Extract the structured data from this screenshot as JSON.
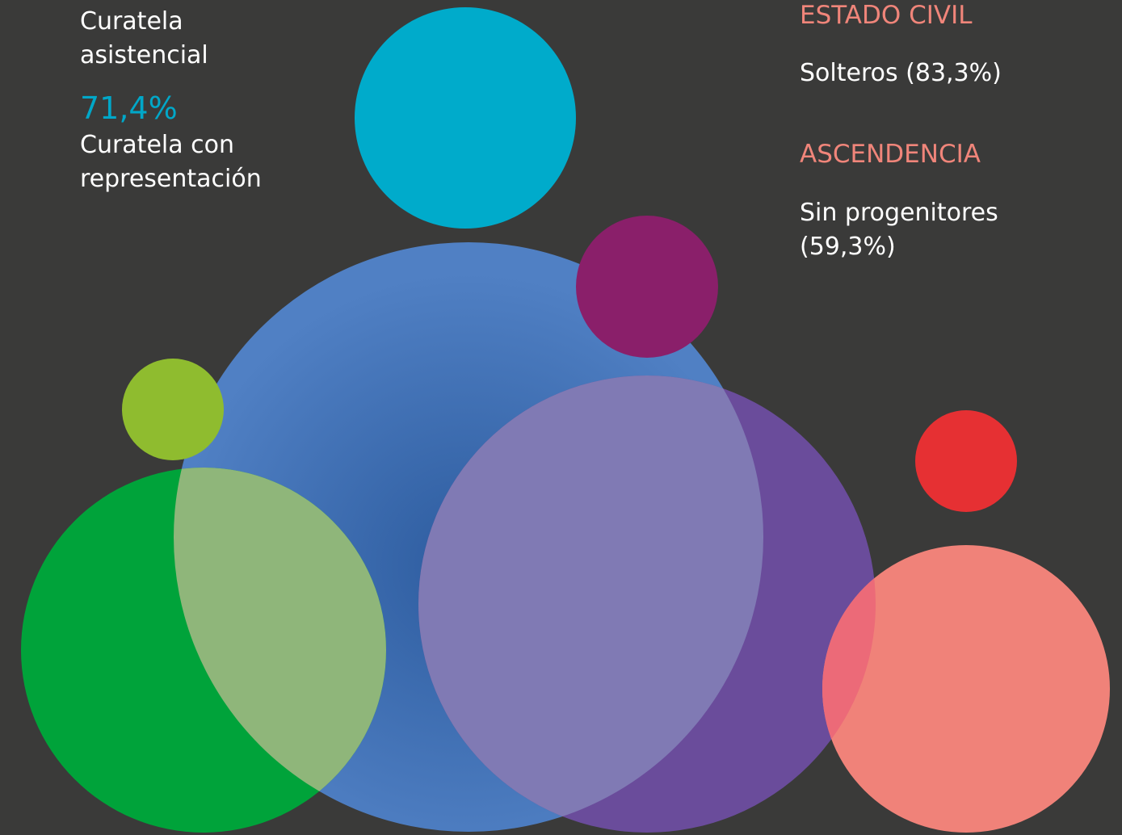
{
  "left": {
    "item1": {
      "label": "Curatela asistencial"
    },
    "item2": {
      "value": "71,4%",
      "label": "Curatela con representación"
    }
  },
  "right": {
    "section1": {
      "heading": "ESTADO CIVIL",
      "text": "Solteros (83,3%)"
    },
    "section2": {
      "heading": "ASCENDENCIA",
      "text": "Sin progenitores (59,3%)"
    }
  }
}
